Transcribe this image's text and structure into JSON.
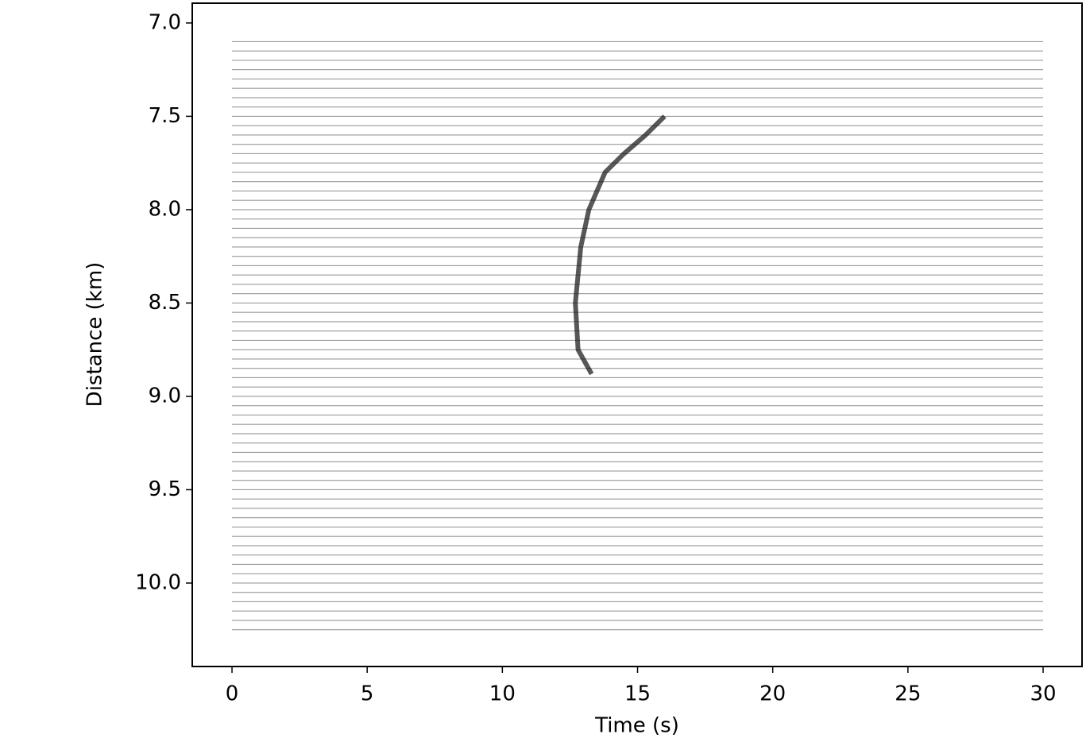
{
  "chart_data": {
    "type": "wiggle",
    "x_label": "Time (s)",
    "y_label": "Distance (km)",
    "xlim": [
      -1.47,
      31.44
    ],
    "xticks": [
      0,
      5,
      10,
      15,
      20,
      25,
      30
    ],
    "ylim": [
      10.447,
      6.894
    ],
    "yticks": [
      {
        "value": 7,
        "label": "7.0"
      },
      7.5,
      {
        "value": 8,
        "label": "8.0"
      },
      8.5,
      {
        "value": 9,
        "label": "9.0"
      },
      9.5,
      {
        "value": 10,
        "label": "10.0"
      }
    ],
    "traces": {
      "color": "#9a9a9a",
      "x": [
        0,
        30
      ],
      "distances": [
        7.1,
        7.15,
        7.2,
        7.25,
        7.3,
        7.35,
        7.4,
        7.45,
        7.5,
        7.55,
        7.6,
        7.65,
        7.7,
        7.75,
        7.8,
        7.85,
        7.9,
        7.95,
        8.0,
        8.05,
        8.1,
        8.15,
        8.2,
        8.25,
        8.3,
        8.35,
        8.4,
        8.45,
        8.5,
        8.55,
        8.6,
        8.65,
        8.7,
        8.75,
        8.8,
        8.85,
        8.9,
        8.95,
        9.0,
        9.05,
        9.1,
        9.15,
        9.2,
        9.25,
        9.3,
        9.35,
        9.4,
        9.45,
        9.5,
        9.55,
        9.6,
        9.65,
        9.7,
        9.75,
        9.8,
        9.85,
        9.9,
        9.95,
        10.0,
        10.05,
        10.1,
        10.15,
        10.2,
        10.25
      ]
    },
    "series": [
      {
        "color": "#111111",
        "x": [
          16.0,
          15.3,
          14.5,
          13.8,
          13.2,
          12.9,
          12.7,
          12.8,
          13.3
        ],
        "values": [
          7.5,
          7.6,
          7.7,
          7.8,
          8.0,
          8.2,
          8.5,
          8.75,
          8.88
        ]
      }
    ]
  }
}
